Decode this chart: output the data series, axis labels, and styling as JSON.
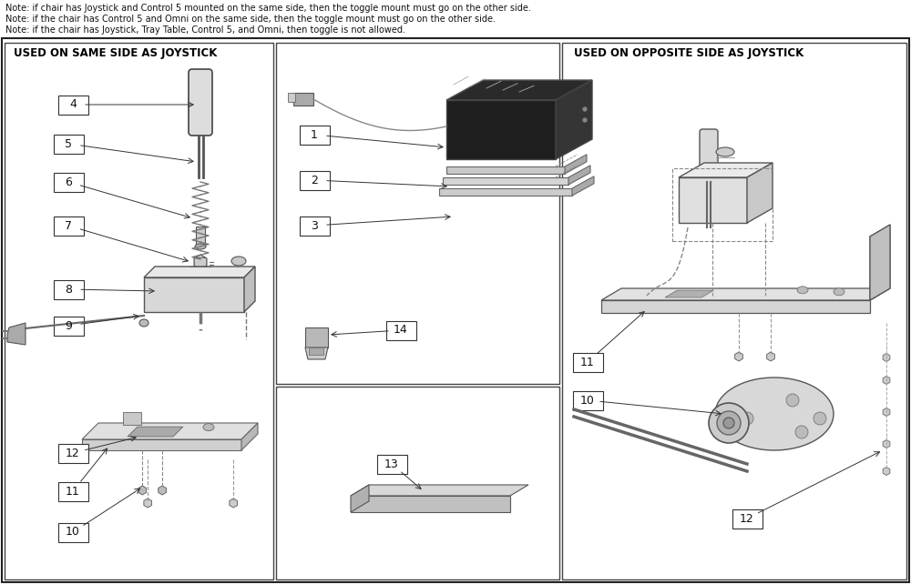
{
  "notes": [
    "Note: if chair has Joystick and Control 5 mounted on the same side, then the toggle mount must go on the other side.",
    "Note: if the chair has Control 5 and Omni on the same side, then the toggle mount must go on the other side.",
    "Note: if the chair has Joystick, Tray Table, Control 5, and Omni, then toggle is not allowed."
  ],
  "left_panel_title": "USED ON SAME SIDE AS JOYSTICK",
  "right_panel_title": "USED ON OPPOSITE SIDE AS JOYSTICK",
  "bg_color": "#ffffff",
  "fig_width": 10.0,
  "fig_height": 6.42,
  "dpi": 100
}
